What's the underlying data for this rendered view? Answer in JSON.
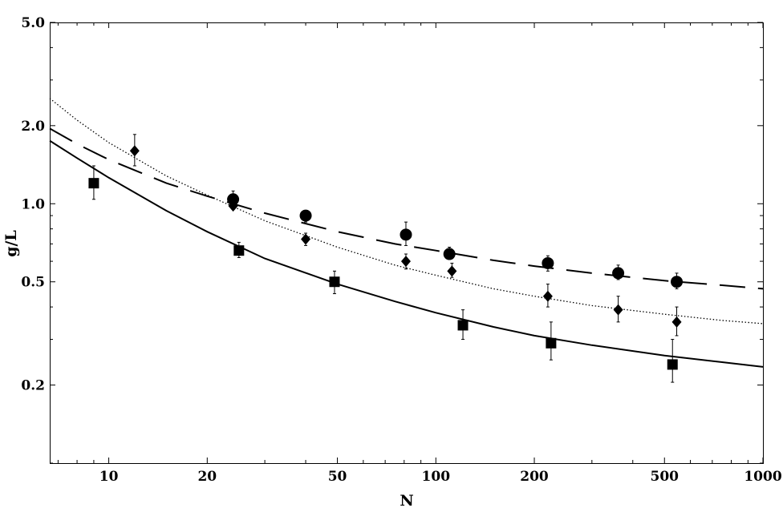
{
  "chart_data": {
    "type": "scatter",
    "title": "",
    "xlabel": "N",
    "ylabel": "g/L",
    "xscale": "log",
    "yscale": "log",
    "xlim": [
      6.6,
      1000
    ],
    "ylim": [
      0.1,
      5.0
    ],
    "grid": false,
    "legend": "none",
    "x_ticks": [
      {
        "value": 10,
        "label": "10"
      },
      {
        "value": 20,
        "label": "20"
      },
      {
        "value": 50,
        "label": "50"
      },
      {
        "value": 100,
        "label": "100"
      },
      {
        "value": 200,
        "label": "200"
      },
      {
        "value": 500,
        "label": "500"
      },
      {
        "value": 1000,
        "label": "1000"
      }
    ],
    "y_ticks": [
      {
        "value": 0.2,
        "label": "0.2"
      },
      {
        "value": 0.5,
        "label": "0.5"
      },
      {
        "value": 1.0,
        "label": "1.0"
      },
      {
        "value": 2.0,
        "label": "2.0"
      },
      {
        "value": 5.0,
        "label": "5.0"
      }
    ],
    "series": [
      {
        "marker": "square",
        "line": "solid",
        "points": [
          {
            "x": 9,
            "y": 1.2,
            "err_low": 1.04,
            "err_high": 1.4
          },
          {
            "x": 25,
            "y": 0.66,
            "err_low": 0.62,
            "err_high": 0.71
          },
          {
            "x": 49,
            "y": 0.5,
            "err_low": 0.45,
            "err_high": 0.55
          },
          {
            "x": 121,
            "y": 0.34,
            "err_low": 0.3,
            "err_high": 0.39
          },
          {
            "x": 225,
            "y": 0.29,
            "err_low": 0.25,
            "err_high": 0.35
          },
          {
            "x": 529,
            "y": 0.24,
            "err_low": 0.205,
            "err_high": 0.3
          }
        ],
        "fit": {
          "x": [
            6.6,
            8,
            10,
            15,
            20,
            30,
            50,
            75,
            100,
            150,
            200,
            300,
            500,
            750,
            1000
          ],
          "y": [
            1.75,
            1.5,
            1.26,
            0.94,
            0.78,
            0.615,
            0.49,
            0.42,
            0.38,
            0.335,
            0.31,
            0.285,
            0.26,
            0.245,
            0.235
          ]
        }
      },
      {
        "marker": "diamond",
        "line": "dotted",
        "points": [
          {
            "x": 12,
            "y": 1.6,
            "err_low": 1.4,
            "err_high": 1.85
          },
          {
            "x": 24,
            "y": 0.98,
            "err_low": 0.95,
            "err_high": 1.01
          },
          {
            "x": 40,
            "y": 0.73,
            "err_low": 0.69,
            "err_high": 0.77
          },
          {
            "x": 81,
            "y": 0.6,
            "err_low": 0.56,
            "err_high": 0.64
          },
          {
            "x": 112,
            "y": 0.55,
            "err_low": 0.52,
            "err_high": 0.59
          },
          {
            "x": 220,
            "y": 0.44,
            "err_low": 0.4,
            "err_high": 0.49
          },
          {
            "x": 361,
            "y": 0.39,
            "err_low": 0.35,
            "err_high": 0.44
          },
          {
            "x": 545,
            "y": 0.35,
            "err_low": 0.31,
            "err_high": 0.4
          }
        ],
        "fit": {
          "x": [
            6.6,
            8,
            10,
            15,
            20,
            30,
            50,
            75,
            100,
            150,
            200,
            300,
            500,
            750,
            1000
          ],
          "y": [
            2.55,
            2.1,
            1.72,
            1.28,
            1.08,
            0.86,
            0.68,
            0.58,
            0.53,
            0.47,
            0.44,
            0.405,
            0.375,
            0.355,
            0.345
          ]
        }
      },
      {
        "marker": "circle",
        "line": "dashed",
        "points": [
          {
            "x": 24,
            "y": 1.04,
            "err_low": 0.98,
            "err_high": 1.12
          },
          {
            "x": 40,
            "y": 0.9,
            "err_low": 0.85,
            "err_high": 0.94
          },
          {
            "x": 81,
            "y": 0.76,
            "err_low": 0.69,
            "err_high": 0.85
          },
          {
            "x": 110,
            "y": 0.64,
            "err_low": 0.61,
            "err_high": 0.68
          },
          {
            "x": 220,
            "y": 0.59,
            "err_low": 0.55,
            "err_high": 0.63
          },
          {
            "x": 361,
            "y": 0.54,
            "err_low": 0.51,
            "err_high": 0.58
          },
          {
            "x": 545,
            "y": 0.5,
            "err_low": 0.47,
            "err_high": 0.54
          }
        ],
        "fit": {
          "x": [
            6.6,
            8,
            10,
            15,
            20,
            30,
            50,
            75,
            100,
            150,
            200,
            300,
            500,
            750,
            1000
          ],
          "y": [
            1.95,
            1.7,
            1.48,
            1.2,
            1.07,
            0.92,
            0.78,
            0.7,
            0.66,
            0.605,
            0.575,
            0.54,
            0.505,
            0.485,
            0.47
          ]
        }
      }
    ]
  }
}
